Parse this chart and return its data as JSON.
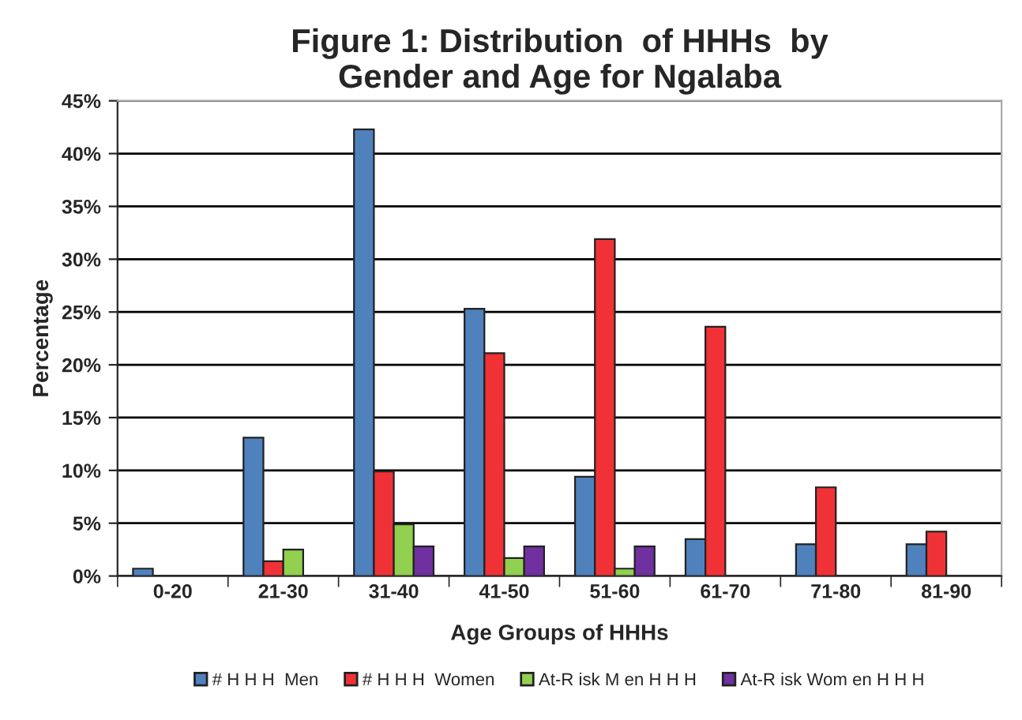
{
  "chart_data": {
    "type": "bar",
    "title": "Figure 1: Distribution  of HHHs  by\nGender and Age for Ngalaba",
    "xlabel": "Age Groups of HHHs",
    "ylabel": "Percentage",
    "categories": [
      "0-20",
      "21-30",
      "31-40",
      "41-50",
      "51-60",
      "61-70",
      "71-80",
      "81-90"
    ],
    "series": [
      {
        "name": "# H H H  Men",
        "color": "#4f81bd",
        "values": [
          0.7,
          13.1,
          42.3,
          25.3,
          9.4,
          3.5,
          3.0,
          3.0
        ]
      },
      {
        "name": "# H H H  Women",
        "color": "#f03237",
        "values": [
          null,
          1.4,
          9.9,
          21.1,
          31.9,
          23.6,
          8.4,
          4.2
        ]
      },
      {
        "name": "At-R isk M en H H H",
        "color": "#92d050",
        "values": [
          null,
          2.5,
          4.9,
          1.7,
          0.7,
          null,
          null,
          null
        ]
      },
      {
        "name": "At-R isk Wom en H H H",
        "color": "#7030a0",
        "values": [
          null,
          null,
          2.8,
          2.8,
          2.8,
          null,
          null,
          null
        ]
      }
    ],
    "ylim": [
      0,
      45
    ],
    "yticks": [
      {
        "value": 0,
        "label": "0%"
      },
      {
        "value": 5,
        "label": "5%"
      },
      {
        "value": 10,
        "label": "10%"
      },
      {
        "value": 15,
        "label": "15%"
      },
      {
        "value": 20,
        "label": "20%"
      },
      {
        "value": 25,
        "label": "25%"
      },
      {
        "value": 30,
        "label": "30%"
      },
      {
        "value": 35,
        "label": "35%"
      },
      {
        "value": 40,
        "label": "40%"
      },
      {
        "value": 45,
        "label": "45%"
      }
    ],
    "grid": "y",
    "legend": "bottom"
  }
}
